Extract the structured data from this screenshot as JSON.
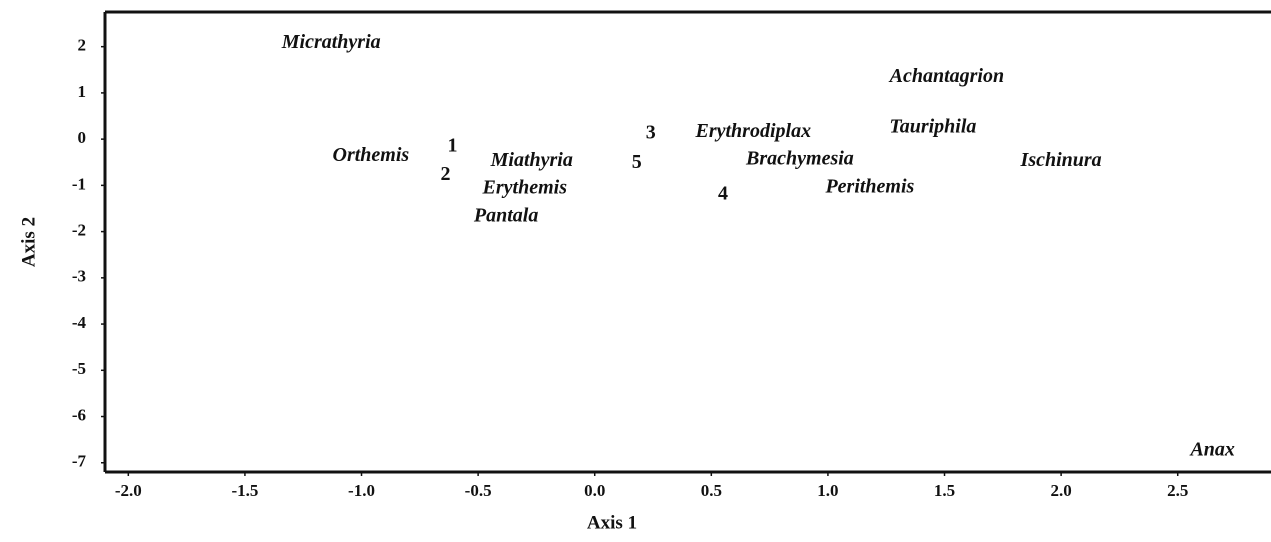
{
  "chart_data": {
    "type": "scatter",
    "x_label": "Axis 1",
    "y_label": "Axis 2",
    "labels": [
      "Micrathyria",
      "Achantagrion",
      "Orthemis",
      "1",
      "2",
      "Miathyria",
      "Erythemis",
      "Pantala",
      "3",
      "5",
      "Erythrodiplax",
      "Tauriphila",
      "Brachymesia",
      "Ischinura",
      "4",
      "Perithemis",
      "Anax"
    ],
    "x": [
      -1.13,
      1.51,
      -0.96,
      -0.61,
      -0.64,
      -0.27,
      -0.3,
      -0.38,
      0.24,
      0.18,
      0.68,
      1.45,
      0.88,
      2.0,
      0.55,
      1.18,
      2.65
    ],
    "y": [
      2.07,
      1.34,
      -0.37,
      -0.17,
      -0.78,
      -0.48,
      -1.08,
      -1.68,
      0.11,
      -0.52,
      0.15,
      0.24,
      -0.45,
      -0.48,
      -1.21,
      -1.06,
      -6.74
    ],
    "color": "#111111",
    "xlim": [
      -2.1,
      2.9
    ],
    "xticks": [
      {
        "value": -2,
        "label": "-2.0"
      },
      {
        "value": -1.5,
        "label": "-1.5"
      },
      {
        "value": -1,
        "label": "-1.0"
      },
      {
        "value": -0.5,
        "label": "-0.5"
      },
      {
        "value": 0,
        "label": "0.0"
      },
      0.5,
      {
        "value": 1,
        "label": "1.0"
      },
      1.5,
      {
        "value": 2,
        "label": "2.0"
      },
      2.5
    ],
    "ylim": [
      -7.2,
      2.75
    ],
    "yticks": [
      2,
      1,
      0,
      -1,
      -2,
      -3,
      -4,
      -5,
      -6,
      -7
    ]
  }
}
